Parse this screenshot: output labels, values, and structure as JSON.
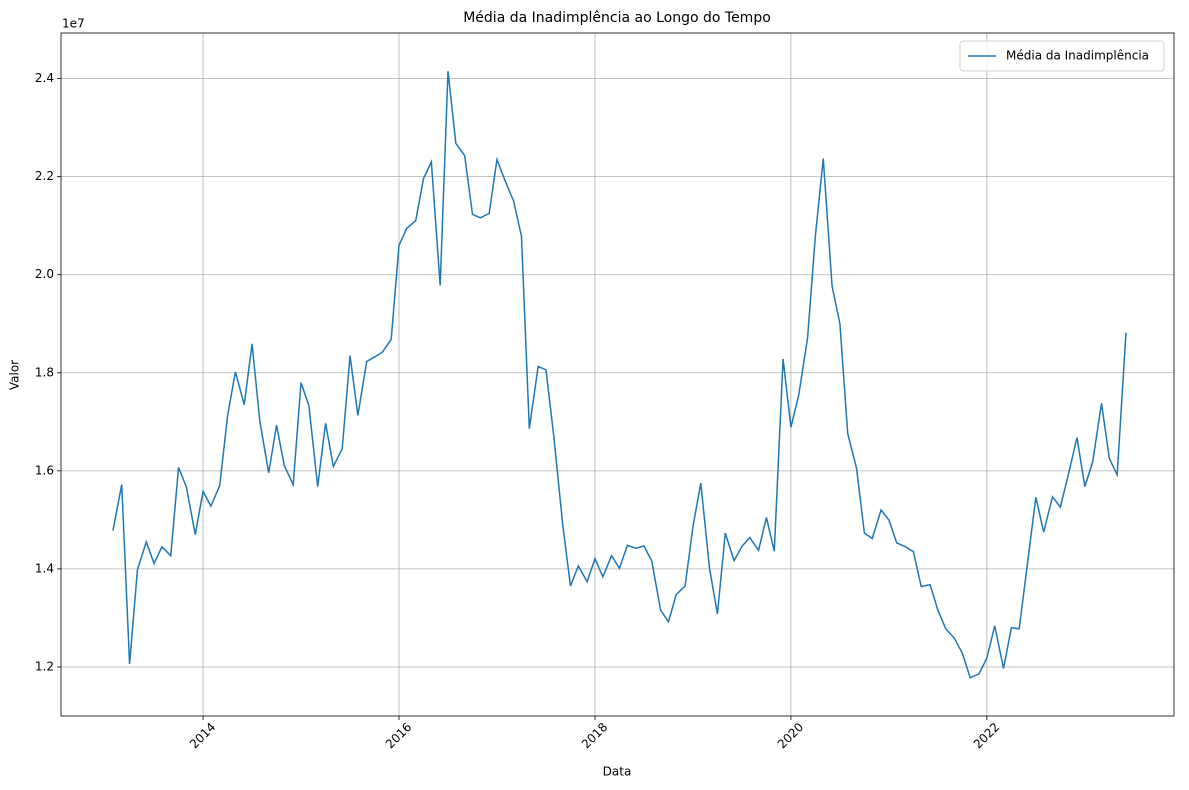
{
  "chart_data": {
    "type": "line",
    "title": "Média da Inadimplência ao Longo do Tempo",
    "x_label": "Data",
    "y_label": "Valor",
    "y_offset_label": "1e7",
    "legend": "upper right",
    "grid": true,
    "xlim": [
      2012.55,
      2023.91
    ],
    "ylim": [
      1.1,
      2.493
    ],
    "xticks": [
      2014,
      2016,
      2018,
      2020,
      2022
    ],
    "yticks": [
      1.2,
      1.4,
      1.6,
      1.8,
      {
        "value": 2,
        "label": "2.0"
      },
      2.2,
      2.4
    ],
    "x": [
      2013.08,
      2013.17,
      2013.25,
      2013.33,
      2013.42,
      2013.5,
      2013.58,
      2013.67,
      2013.75,
      2013.83,
      2013.92,
      2014,
      2014.08,
      2014.17,
      2014.25,
      2014.33,
      2014.42,
      2014.5,
      2014.58,
      2014.67,
      2014.75,
      2014.83,
      2014.92,
      2015,
      2015.08,
      2015.17,
      2015.25,
      2015.33,
      2015.42,
      2015.5,
      2015.58,
      2015.67,
      2015.75,
      2015.83,
      2015.92,
      2016,
      2016.08,
      2016.17,
      2016.25,
      2016.33,
      2016.42,
      2016.5,
      2016.58,
      2016.67,
      2016.75,
      2016.83,
      2016.92,
      2017,
      2017.08,
      2017.17,
      2017.25,
      2017.33,
      2017.42,
      2017.5,
      2017.58,
      2017.67,
      2017.75,
      2017.83,
      2017.92,
      2018,
      2018.08,
      2018.17,
      2018.25,
      2018.33,
      2018.42,
      2018.5,
      2018.58,
      2018.67,
      2018.75,
      2018.83,
      2018.92,
      2019,
      2019.08,
      2019.17,
      2019.25,
      2019.33,
      2019.42,
      2019.5,
      2019.58,
      2019.67,
      2019.75,
      2019.83,
      2019.92,
      2020,
      2020.08,
      2020.17,
      2020.25,
      2020.33,
      2020.42,
      2020.5,
      2020.58,
      2020.67,
      2020.75,
      2020.83,
      2020.92,
      2021,
      2021.08,
      2021.17,
      2021.25,
      2021.33,
      2021.42,
      2021.5,
      2021.58,
      2021.67,
      2021.75,
      2021.83,
      2021.92,
      2022,
      2022.08,
      2022.17,
      2022.25,
      2022.33,
      2022.42,
      2022.5,
      2022.58,
      2022.67,
      2022.75,
      2022.83,
      2022.92,
      2023,
      2023.08,
      2023.17,
      2023.25,
      2023.33,
      2023.42
    ],
    "series": [
      {
        "name": "Média da Inadimplência",
        "color": "#1f77b4",
        "values": [
          1.478,
          1.572,
          1.206,
          1.398,
          1.455,
          1.411,
          1.445,
          1.427,
          1.607,
          1.567,
          1.47,
          1.558,
          1.528,
          1.57,
          1.712,
          1.802,
          1.735,
          1.859,
          1.7,
          1.596,
          1.693,
          1.61,
          1.572,
          1.78,
          1.733,
          1.568,
          1.697,
          1.609,
          1.645,
          1.835,
          1.713,
          1.823,
          1.832,
          1.842,
          1.868,
          2.06,
          2.095,
          2.11,
          2.196,
          2.23,
          1.978,
          2.415,
          2.268,
          2.243,
          2.123,
          2.116,
          2.125,
          2.235,
          2.193,
          2.15,
          2.078,
          1.686,
          1.813,
          1.806,
          1.67,
          1.492,
          1.365,
          1.406,
          1.374,
          1.421,
          1.384,
          1.427,
          1.401,
          1.448,
          1.442,
          1.447,
          1.416,
          1.316,
          1.292,
          1.348,
          1.365,
          1.486,
          1.575,
          1.4,
          1.308,
          1.473,
          1.417,
          1.446,
          1.464,
          1.438,
          1.505,
          1.436,
          1.828,
          1.689,
          1.755,
          1.871,
          2.08,
          2.237,
          1.977,
          1.9,
          1.676,
          1.605,
          1.473,
          1.462,
          1.52,
          1.5,
          1.453,
          1.445,
          1.435,
          1.364,
          1.368,
          1.316,
          1.278,
          1.258,
          1.228,
          1.178,
          1.186,
          1.218,
          1.284,
          1.197,
          1.28,
          1.278,
          1.42,
          1.546,
          1.475,
          1.547,
          1.526,
          1.591,
          1.668,
          1.568,
          1.618,
          1.738,
          1.625,
          1.592,
          1.882
        ]
      }
    ]
  }
}
